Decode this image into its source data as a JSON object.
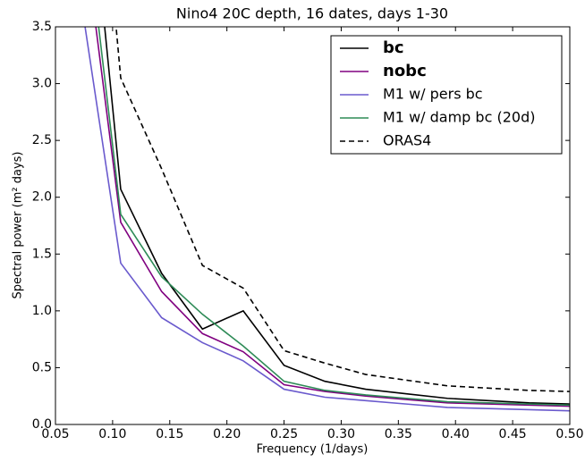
{
  "chart_data": {
    "type": "line",
    "title": "Nino4 20C depth, 16 dates, days 1-30",
    "x_label": "Frequency (1/days)",
    "y_label": "Spectral power (m² days)",
    "x": [
      0.0714,
      0.1071,
      0.1429,
      0.1786,
      0.2143,
      0.25,
      0.2857,
      0.3214,
      0.3571,
      0.3929,
      0.4286,
      0.4643,
      0.5
    ],
    "series": [
      {
        "name": "bc",
        "color": "#000000",
        "bold": true,
        "values": [
          5.7,
          2.07,
          1.33,
          0.84,
          1.0,
          0.52,
          0.38,
          0.31,
          0.27,
          0.23,
          0.21,
          0.19,
          0.18
        ]
      },
      {
        "name": "nobc",
        "color": "#800080",
        "bold": true,
        "values": [
          4.6,
          1.78,
          1.17,
          0.8,
          0.64,
          0.35,
          0.29,
          0.25,
          0.22,
          0.19,
          0.18,
          0.17,
          0.16
        ]
      },
      {
        "name": "M1 w/ pers bc",
        "color": "#6a5acd",
        "values": [
          3.8,
          1.42,
          0.94,
          0.72,
          0.56,
          0.31,
          0.24,
          0.21,
          0.18,
          0.15,
          0.14,
          0.13,
          0.12
        ]
      },
      {
        "name": "M1 w/ damp bc (20d)",
        "color": "#2e8b57",
        "values": [
          4.9,
          1.85,
          1.3,
          0.97,
          0.69,
          0.38,
          0.3,
          0.26,
          0.23,
          0.2,
          0.19,
          0.18,
          0.17
        ]
      },
      {
        "name": "ORAS4",
        "color": "#000000",
        "dashed": true,
        "values": [
          7.0,
          3.05,
          2.25,
          1.4,
          1.2,
          0.65,
          0.54,
          0.44,
          0.39,
          0.34,
          0.32,
          0.3,
          0.29
        ]
      }
    ],
    "xlim": [
      0.05,
      0.5
    ],
    "xticks": [
      0.05,
      {
        "value": 0.1,
        "label": "0.10"
      },
      0.15,
      {
        "value": 0.2,
        "label": "0.20"
      },
      0.25,
      {
        "value": 0.3,
        "label": "0.30"
      },
      0.35,
      {
        "value": 0.4,
        "label": "0.40"
      },
      0.45,
      {
        "value": 0.5,
        "label": "0.50"
      }
    ],
    "ylim": [
      0,
      3.5
    ],
    "yticks": [
      {
        "value": 0,
        "label": "0.0"
      },
      0.5,
      {
        "value": 1,
        "label": "1.0"
      },
      1.5,
      {
        "value": 2,
        "label": "2.0"
      },
      2.5,
      {
        "value": 3,
        "label": "3.0"
      },
      3.5
    ],
    "legend": "upper right"
  }
}
